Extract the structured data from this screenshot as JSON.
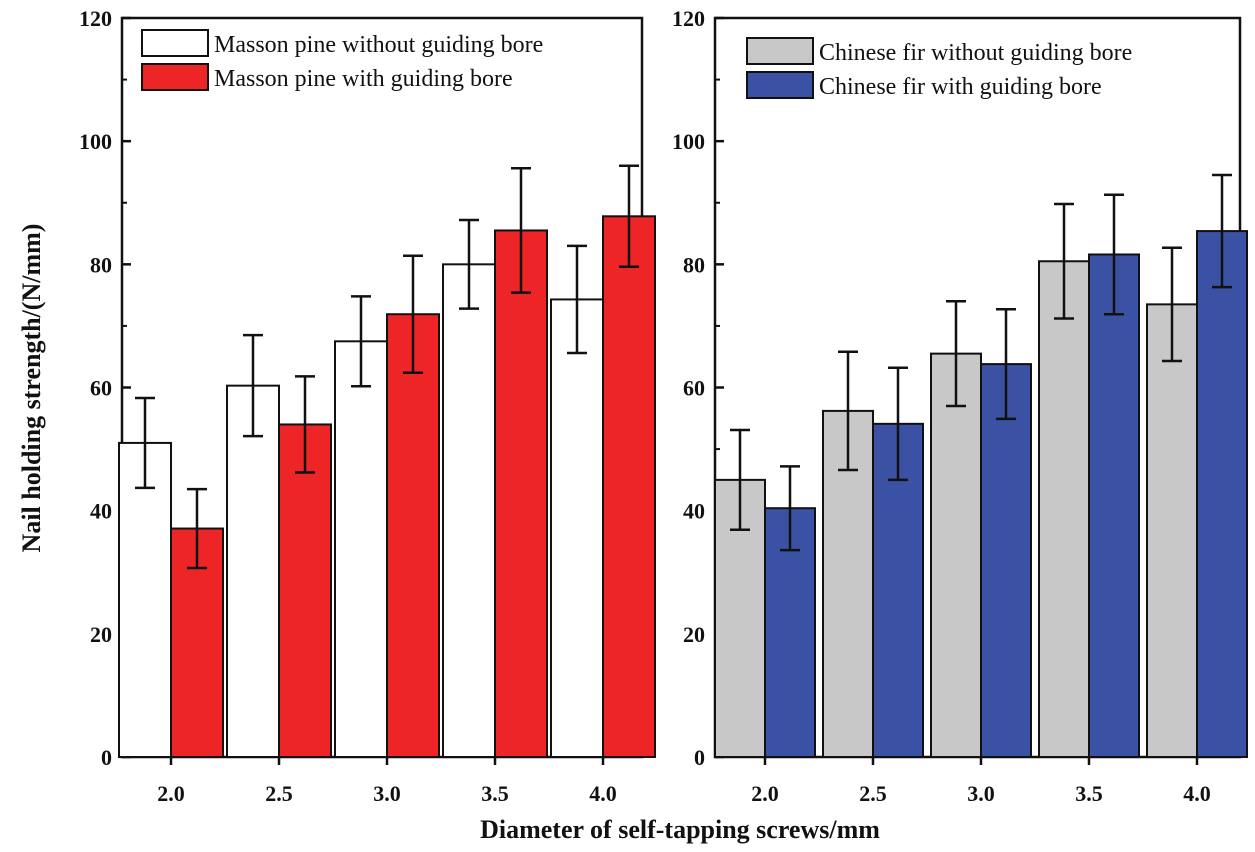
{
  "figure": {
    "ylabel": "Nail holding strength/(N/mm)",
    "xlabel": "Diameter of self-tapping screws/mm"
  },
  "chart_data": [
    {
      "type": "bar",
      "panel": "left",
      "categories": [
        "2.0",
        "2.5",
        "3.0",
        "3.5",
        "4.0"
      ],
      "ylim": [
        0,
        120
      ],
      "yticks": [
        "0",
        "20",
        "40",
        "60",
        "80",
        "100",
        "120"
      ],
      "ylabel": "Nail holding strength/(N/mm)",
      "xlabel": "Diameter of self-tapping screws/mm",
      "legend_position": "top-left",
      "series": [
        {
          "name": "Masson pine without guiding bore",
          "fill": "#ffffff",
          "stroke": "#111111",
          "values": [
            51,
            60.3,
            67.5,
            80,
            74.3
          ],
          "errors": [
            7.3,
            8.2,
            7.3,
            7.2,
            8.7
          ]
        },
        {
          "name": "Masson pine with guiding bore",
          "fill": "#ee2526",
          "stroke": "#111111",
          "values": [
            37.1,
            54,
            71.9,
            85.5,
            87.8
          ],
          "errors": [
            6.4,
            7.8,
            9.5,
            10.1,
            8.2
          ]
        }
      ]
    },
    {
      "type": "bar",
      "panel": "right",
      "categories": [
        "2.0",
        "2.5",
        "3.0",
        "3.5",
        "4.0"
      ],
      "ylim": [
        0,
        120
      ],
      "yticks": [
        "0",
        "20",
        "40",
        "60",
        "80",
        "100",
        "120"
      ],
      "ylabel": "",
      "xlabel": "Diameter of self-tapping screws/mm",
      "legend_position": "top-left",
      "series": [
        {
          "name": "Chinese fir without guiding bore",
          "fill": "#c8c8c8",
          "stroke": "#111111",
          "values": [
            45,
            56.2,
            65.5,
            80.5,
            73.5
          ],
          "errors": [
            8.1,
            9.6,
            8.5,
            9.3,
            9.2
          ]
        },
        {
          "name": "Chinese fir with guiding bore",
          "fill": "#3b52a4",
          "stroke": "#111111",
          "values": [
            40.4,
            54.1,
            63.8,
            81.6,
            85.4
          ],
          "errors": [
            6.8,
            9.1,
            8.9,
            9.7,
            9.1
          ]
        }
      ]
    }
  ]
}
